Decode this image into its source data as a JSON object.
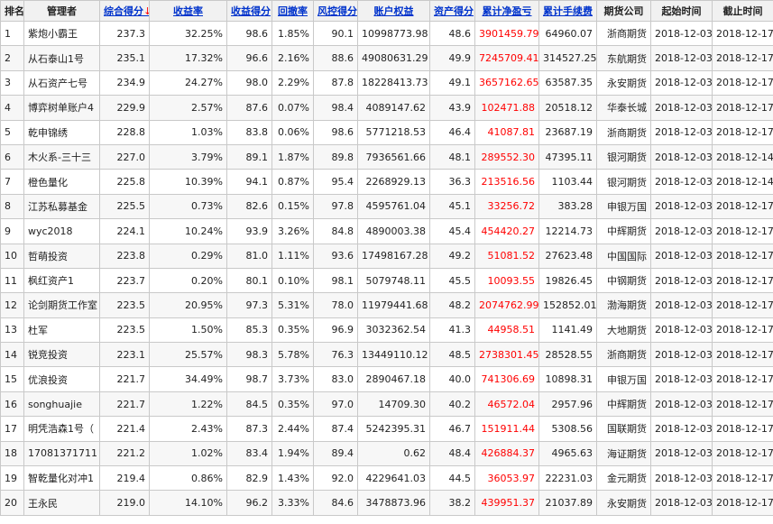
{
  "headers": {
    "rank": "排名",
    "manager": "管理者",
    "score": "综合得分",
    "score_arrow": "↓",
    "return_rate": "收益率",
    "return_score": "收益得分",
    "drawdown": "回撤率",
    "risk_score": "风控得分",
    "equity": "账户权益",
    "asset_score": "资产得分",
    "net_profit": "累计净盈亏",
    "fees": "累计手续费",
    "broker": "期货公司",
    "start": "起始时间",
    "end": "截止时间"
  },
  "rows": [
    {
      "rank": "1",
      "manager": "紫炮小霸王",
      "score": "237.3",
      "return_rate": "32.25%",
      "return_score": "98.6",
      "drawdown": "1.85%",
      "risk_score": "90.1",
      "equity": "10998773.98",
      "asset_score": "48.6",
      "net_profit": "3901459.79",
      "fees": "64960.07",
      "broker": "浙商期货",
      "start": "2018-12-03",
      "end": "2018-12-17"
    },
    {
      "rank": "2",
      "manager": "从石泰山1号",
      "score": "235.1",
      "return_rate": "17.32%",
      "return_score": "96.6",
      "drawdown": "2.16%",
      "risk_score": "88.6",
      "equity": "49080631.29",
      "asset_score": "49.9",
      "net_profit": "7245709.41",
      "fees": "314527.25",
      "broker": "东航期货",
      "start": "2018-12-03",
      "end": "2018-12-17"
    },
    {
      "rank": "3",
      "manager": "从石资产七号",
      "score": "234.9",
      "return_rate": "24.27%",
      "return_score": "98.0",
      "drawdown": "2.29%",
      "risk_score": "87.8",
      "equity": "18228413.73",
      "asset_score": "49.1",
      "net_profit": "3657162.65",
      "fees": "63587.35",
      "broker": "永安期货",
      "start": "2018-12-03",
      "end": "2018-12-17"
    },
    {
      "rank": "4",
      "manager": "博弈树单账户4",
      "score": "229.9",
      "return_rate": "2.57%",
      "return_score": "87.6",
      "drawdown": "0.07%",
      "risk_score": "98.4",
      "equity": "4089147.62",
      "asset_score": "43.9",
      "net_profit": "102471.88",
      "fees": "20518.12",
      "broker": "华泰长城",
      "start": "2018-12-03",
      "end": "2018-12-17"
    },
    {
      "rank": "5",
      "manager": "乾申锦绣",
      "score": "228.8",
      "return_rate": "1.03%",
      "return_score": "83.8",
      "drawdown": "0.06%",
      "risk_score": "98.6",
      "equity": "5771218.53",
      "asset_score": "46.4",
      "net_profit": "41087.81",
      "fees": "23687.19",
      "broker": "浙商期货",
      "start": "2018-12-03",
      "end": "2018-12-17"
    },
    {
      "rank": "6",
      "manager": "木火系-三十三",
      "score": "227.0",
      "return_rate": "3.79%",
      "return_score": "89.1",
      "drawdown": "1.87%",
      "risk_score": "89.8",
      "equity": "7936561.66",
      "asset_score": "48.1",
      "net_profit": "289552.30",
      "fees": "47395.11",
      "broker": "银河期货",
      "start": "2018-12-03",
      "end": "2018-12-14"
    },
    {
      "rank": "7",
      "manager": "橙色量化",
      "score": "225.8",
      "return_rate": "10.39%",
      "return_score": "94.1",
      "drawdown": "0.87%",
      "risk_score": "95.4",
      "equity": "2268929.13",
      "asset_score": "36.3",
      "net_profit": "213516.56",
      "fees": "1103.44",
      "broker": "银河期货",
      "start": "2018-12-03",
      "end": "2018-12-14"
    },
    {
      "rank": "8",
      "manager": "江苏私募基金",
      "score": "225.5",
      "return_rate": "0.73%",
      "return_score": "82.6",
      "drawdown": "0.15%",
      "risk_score": "97.8",
      "equity": "4595761.04",
      "asset_score": "45.1",
      "net_profit": "33256.72",
      "fees": "383.28",
      "broker": "申银万国",
      "start": "2018-12-03",
      "end": "2018-12-17"
    },
    {
      "rank": "9",
      "manager": "wyc2018",
      "score": "224.1",
      "return_rate": "10.24%",
      "return_score": "93.9",
      "drawdown": "3.26%",
      "risk_score": "84.8",
      "equity": "4890003.38",
      "asset_score": "45.4",
      "net_profit": "454420.27",
      "fees": "12214.73",
      "broker": "中辉期货",
      "start": "2018-12-03",
      "end": "2018-12-17"
    },
    {
      "rank": "10",
      "manager": "哲萌投资",
      "score": "223.8",
      "return_rate": "0.29%",
      "return_score": "81.0",
      "drawdown": "1.11%",
      "risk_score": "93.6",
      "equity": "17498167.28",
      "asset_score": "49.2",
      "net_profit": "51081.52",
      "fees": "27623.48",
      "broker": "中国国际",
      "start": "2018-12-03",
      "end": "2018-12-17"
    },
    {
      "rank": "11",
      "manager": "枫红资产1",
      "score": "223.7",
      "return_rate": "0.20%",
      "return_score": "80.1",
      "drawdown": "0.10%",
      "risk_score": "98.1",
      "equity": "5079748.11",
      "asset_score": "45.5",
      "net_profit": "10093.55",
      "fees": "19826.45",
      "broker": "中钢期货",
      "start": "2018-12-03",
      "end": "2018-12-17"
    },
    {
      "rank": "12",
      "manager": "论剑期货工作室",
      "score": "223.5",
      "return_rate": "20.95%",
      "return_score": "97.3",
      "drawdown": "5.31%",
      "risk_score": "78.0",
      "equity": "11979441.68",
      "asset_score": "48.2",
      "net_profit": "2074762.99",
      "fees": "152852.01",
      "broker": "渤海期货",
      "start": "2018-12-03",
      "end": "2018-12-17"
    },
    {
      "rank": "13",
      "manager": "杜军",
      "score": "223.5",
      "return_rate": "1.50%",
      "return_score": "85.3",
      "drawdown": "0.35%",
      "risk_score": "96.9",
      "equity": "3032362.54",
      "asset_score": "41.3",
      "net_profit": "44958.51",
      "fees": "1141.49",
      "broker": "大地期货",
      "start": "2018-12-03",
      "end": "2018-12-17"
    },
    {
      "rank": "14",
      "manager": "锐竞投资",
      "score": "223.1",
      "return_rate": "25.57%",
      "return_score": "98.3",
      "drawdown": "5.78%",
      "risk_score": "76.3",
      "equity": "13449110.12",
      "asset_score": "48.5",
      "net_profit": "2738301.45",
      "fees": "28528.55",
      "broker": "浙商期货",
      "start": "2018-12-03",
      "end": "2018-12-17"
    },
    {
      "rank": "15",
      "manager": "优浪投资",
      "score": "221.7",
      "return_rate": "34.49%",
      "return_score": "98.7",
      "drawdown": "3.73%",
      "risk_score": "83.0",
      "equity": "2890467.18",
      "asset_score": "40.0",
      "net_profit": "741306.69",
      "fees": "10898.31",
      "broker": "申银万国",
      "start": "2018-12-03",
      "end": "2018-12-17"
    },
    {
      "rank": "16",
      "manager": "songhuajie",
      "score": "221.7",
      "return_rate": "1.22%",
      "return_score": "84.5",
      "drawdown": "0.35%",
      "risk_score": "97.0",
      "equity": "14709.30",
      "asset_score": "40.2",
      "net_profit": "46572.04",
      "fees": "2957.96",
      "broker": "中辉期货",
      "start": "2018-12-03",
      "end": "2018-12-17"
    },
    {
      "rank": "17",
      "manager": "明凭浩森1号（",
      "score": "221.4",
      "return_rate": "2.43%",
      "return_score": "87.3",
      "drawdown": "2.44%",
      "risk_score": "87.4",
      "equity": "5242395.31",
      "asset_score": "46.7",
      "net_profit": "151911.44",
      "fees": "5308.56",
      "broker": "国联期货",
      "start": "2018-12-03",
      "end": "2018-12-17"
    },
    {
      "rank": "18",
      "manager": "17081371711",
      "score": "221.2",
      "return_rate": "1.02%",
      "return_score": "83.4",
      "drawdown": "1.94%",
      "risk_score": "89.4",
      "equity": "0.62",
      "asset_score": "48.4",
      "net_profit": "426884.37",
      "fees": "4965.63",
      "broker": "海证期货",
      "start": "2018-12-03",
      "end": "2018-12-17"
    },
    {
      "rank": "19",
      "manager": "智乾量化对冲1",
      "score": "219.4",
      "return_rate": "0.86%",
      "return_score": "82.9",
      "drawdown": "1.43%",
      "risk_score": "92.0",
      "equity": "4229641.03",
      "asset_score": "44.5",
      "net_profit": "36053.97",
      "fees": "22231.03",
      "broker": "金元期货",
      "start": "2018-12-03",
      "end": "2018-12-17"
    },
    {
      "rank": "20",
      "manager": "王永民",
      "score": "219.0",
      "return_rate": "14.10%",
      "return_score": "96.2",
      "drawdown": "3.33%",
      "risk_score": "84.6",
      "equity": "3478873.96",
      "asset_score": "38.2",
      "net_profit": "439951.37",
      "fees": "21037.89",
      "broker": "永安期货",
      "start": "2018-12-03",
      "end": "2018-12-17"
    }
  ]
}
